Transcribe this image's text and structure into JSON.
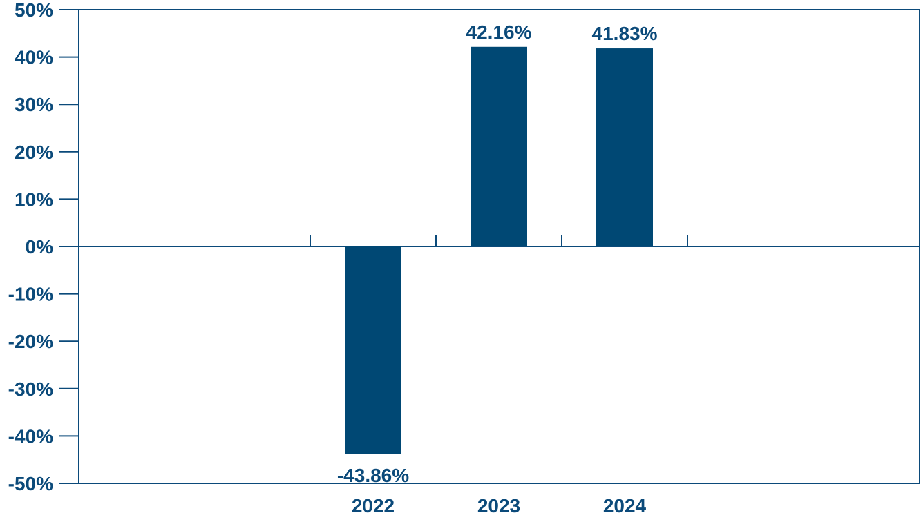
{
  "chart_data": {
    "type": "bar",
    "categories": [
      "2022",
      "2023",
      "2024"
    ],
    "values": [
      -43.86,
      42.16,
      41.83
    ],
    "value_labels": [
      "-43.86%",
      "42.16%",
      "41.83%"
    ],
    "title": "",
    "xlabel": "",
    "ylabel": "",
    "ylim": [
      -50,
      50
    ],
    "yticks": [
      50,
      40,
      30,
      20,
      10,
      0,
      -10,
      -20,
      -30,
      -40,
      -50
    ],
    "ytick_labels": [
      "50%",
      "40%",
      "30%",
      "20%",
      "10%",
      "0%",
      "-10%",
      "-20%",
      "-30%",
      "-40%",
      "-50%"
    ],
    "grid": false,
    "legend": "none",
    "colors": {
      "bar": "#004874",
      "axis": "#0b4a7a",
      "text": "#0b4a7a"
    }
  }
}
